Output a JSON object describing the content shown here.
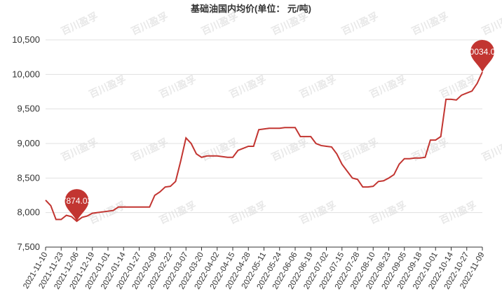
{
  "chart_data": {
    "type": "line",
    "title": "基础油国内均价(单位： 元/吨)",
    "watermark": "百川盈孚",
    "categories": [
      "2021-11-10",
      null,
      null,
      "2021-11-23",
      null,
      null,
      "2021-12-06",
      null,
      null,
      "2021-12-19",
      null,
      null,
      "2022-01-01",
      null,
      null,
      "2022-01-14",
      null,
      null,
      "2022-01-27",
      null,
      null,
      "2022-02-09",
      null,
      null,
      "2022-02-22",
      null,
      null,
      "2022-03-07",
      null,
      null,
      "2022-03-20",
      null,
      null,
      "2022-04-02",
      null,
      null,
      "2022-04-15",
      null,
      null,
      "2022-04-28",
      null,
      null,
      "2022-05-11",
      null,
      null,
      "2022-05-24",
      null,
      null,
      "2022-06-06",
      null,
      null,
      "2022-06-19",
      null,
      null,
      "2022-07-02",
      null,
      null,
      "2022-07-15",
      null,
      null,
      "2022-07-28",
      null,
      null,
      "2022-08-10",
      null,
      null,
      "2022-08-23",
      null,
      null,
      "2022-09-05",
      null,
      null,
      "2022-09-18",
      null,
      null,
      "2022-10-01",
      null,
      null,
      "2022-10-14",
      null,
      null,
      "2022-10-27",
      null,
      null,
      "2022-11-09"
    ],
    "values": [
      8180,
      8100,
      7900,
      7900,
      7960,
      7940,
      7874.03,
      7930,
      7950,
      7990,
      8000,
      8010,
      8020,
      8030,
      8080,
      8080,
      8080,
      8080,
      8080,
      8080,
      8080,
      8250,
      8300,
      8370,
      8380,
      8450,
      8750,
      9080,
      9000,
      8850,
      8800,
      8820,
      8820,
      8820,
      8810,
      8800,
      8800,
      8900,
      8930,
      8960,
      8960,
      9200,
      9210,
      9220,
      9220,
      9220,
      9230,
      9230,
      9230,
      9100,
      9100,
      9100,
      9000,
      8970,
      8960,
      8950,
      8850,
      8700,
      8600,
      8500,
      8480,
      8370,
      8370,
      8380,
      8450,
      8460,
      8500,
      8550,
      8700,
      8780,
      8780,
      8790,
      8790,
      8800,
      9050,
      9050,
      9100,
      9640,
      9640,
      9630,
      9700,
      9730,
      9760,
      9870,
      10034.04
    ],
    "color": "#c23531",
    "mark_points": [
      "min",
      "max"
    ],
    "ylim": [
      7500,
      10500
    ],
    "yticks": [
      {
        "value": 7500,
        "label": "7,500"
      },
      {
        "value": 8000,
        "label": "8,000"
      },
      {
        "value": 8500,
        "label": "8,500"
      },
      {
        "value": 9000,
        "label": "9,000"
      },
      {
        "value": 9500,
        "label": "9,500"
      },
      {
        "value": 10000,
        "label": "10,000"
      },
      {
        "value": 10500,
        "label": "10,500"
      }
    ],
    "grid": true
  }
}
